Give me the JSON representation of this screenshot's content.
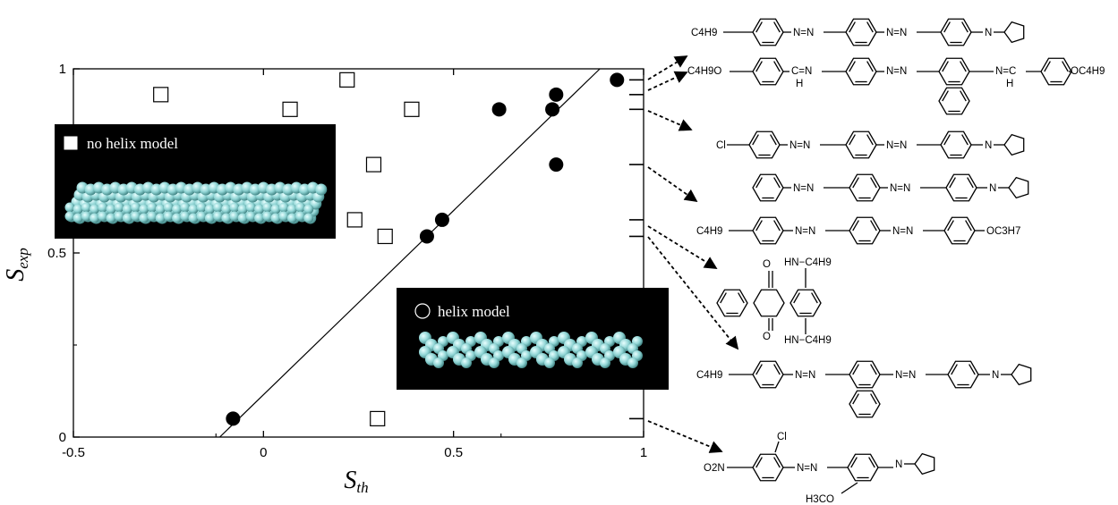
{
  "chart_data": {
    "type": "scatter",
    "xlabel": "S",
    "xlabel_sub": "th",
    "ylabel": "S",
    "ylabel_sub": "exp",
    "xlim": [
      -0.5,
      1
    ],
    "ylim": [
      0,
      1
    ],
    "x_ticks": [
      "-0.5",
      "0",
      "0.5",
      "1"
    ],
    "y_ticks": [
      "0",
      "0.5",
      "1"
    ],
    "series": [
      {
        "name": "no helix model",
        "marker": "open-square",
        "points": [
          [
            -0.27,
            0.93
          ],
          [
            0.07,
            0.89
          ],
          [
            0.22,
            0.97
          ],
          [
            0.39,
            0.89
          ],
          [
            0.29,
            0.74
          ],
          [
            0.24,
            0.59
          ],
          [
            0.32,
            0.545
          ],
          [
            0.3,
            0.05
          ]
        ]
      },
      {
        "name": "helix model",
        "marker": "filled-circle",
        "points": [
          [
            -0.08,
            0.05
          ],
          [
            0.43,
            0.545
          ],
          [
            0.47,
            0.59
          ],
          [
            0.62,
            0.89
          ],
          [
            0.76,
            0.89
          ],
          [
            0.77,
            0.93
          ],
          [
            0.77,
            0.74
          ],
          [
            0.93,
            0.97
          ]
        ]
      }
    ],
    "fit_line": {
      "from": [
        -0.115,
        0
      ],
      "to": [
        0.885,
        1
      ]
    },
    "right_axis_marks": [
      0.97,
      0.93,
      0.89,
      0.74,
      0.59,
      0.545,
      0.05
    ],
    "legend": [
      "no helix model",
      "helix model"
    ],
    "grid": false
  },
  "structure_labels": {
    "c4h9": "C4H9",
    "c4h9o": "C4H9O",
    "oc4h9": "OC4H9",
    "oc3h7": "OC3H7",
    "cl": "Cl",
    "azo": "N=N",
    "imine_left": "C=N",
    "imine_right": "N=C",
    "h": "H",
    "n": "N",
    "o": "O",
    "hn_c4h9": "HN−C4H9",
    "o2n": "O2N",
    "h3co": "H3CO"
  },
  "colors": {
    "filled_marker": "#000000",
    "open_marker": "#ffffff",
    "inset_bg": "#000000",
    "atom": "#8fd4d4"
  }
}
